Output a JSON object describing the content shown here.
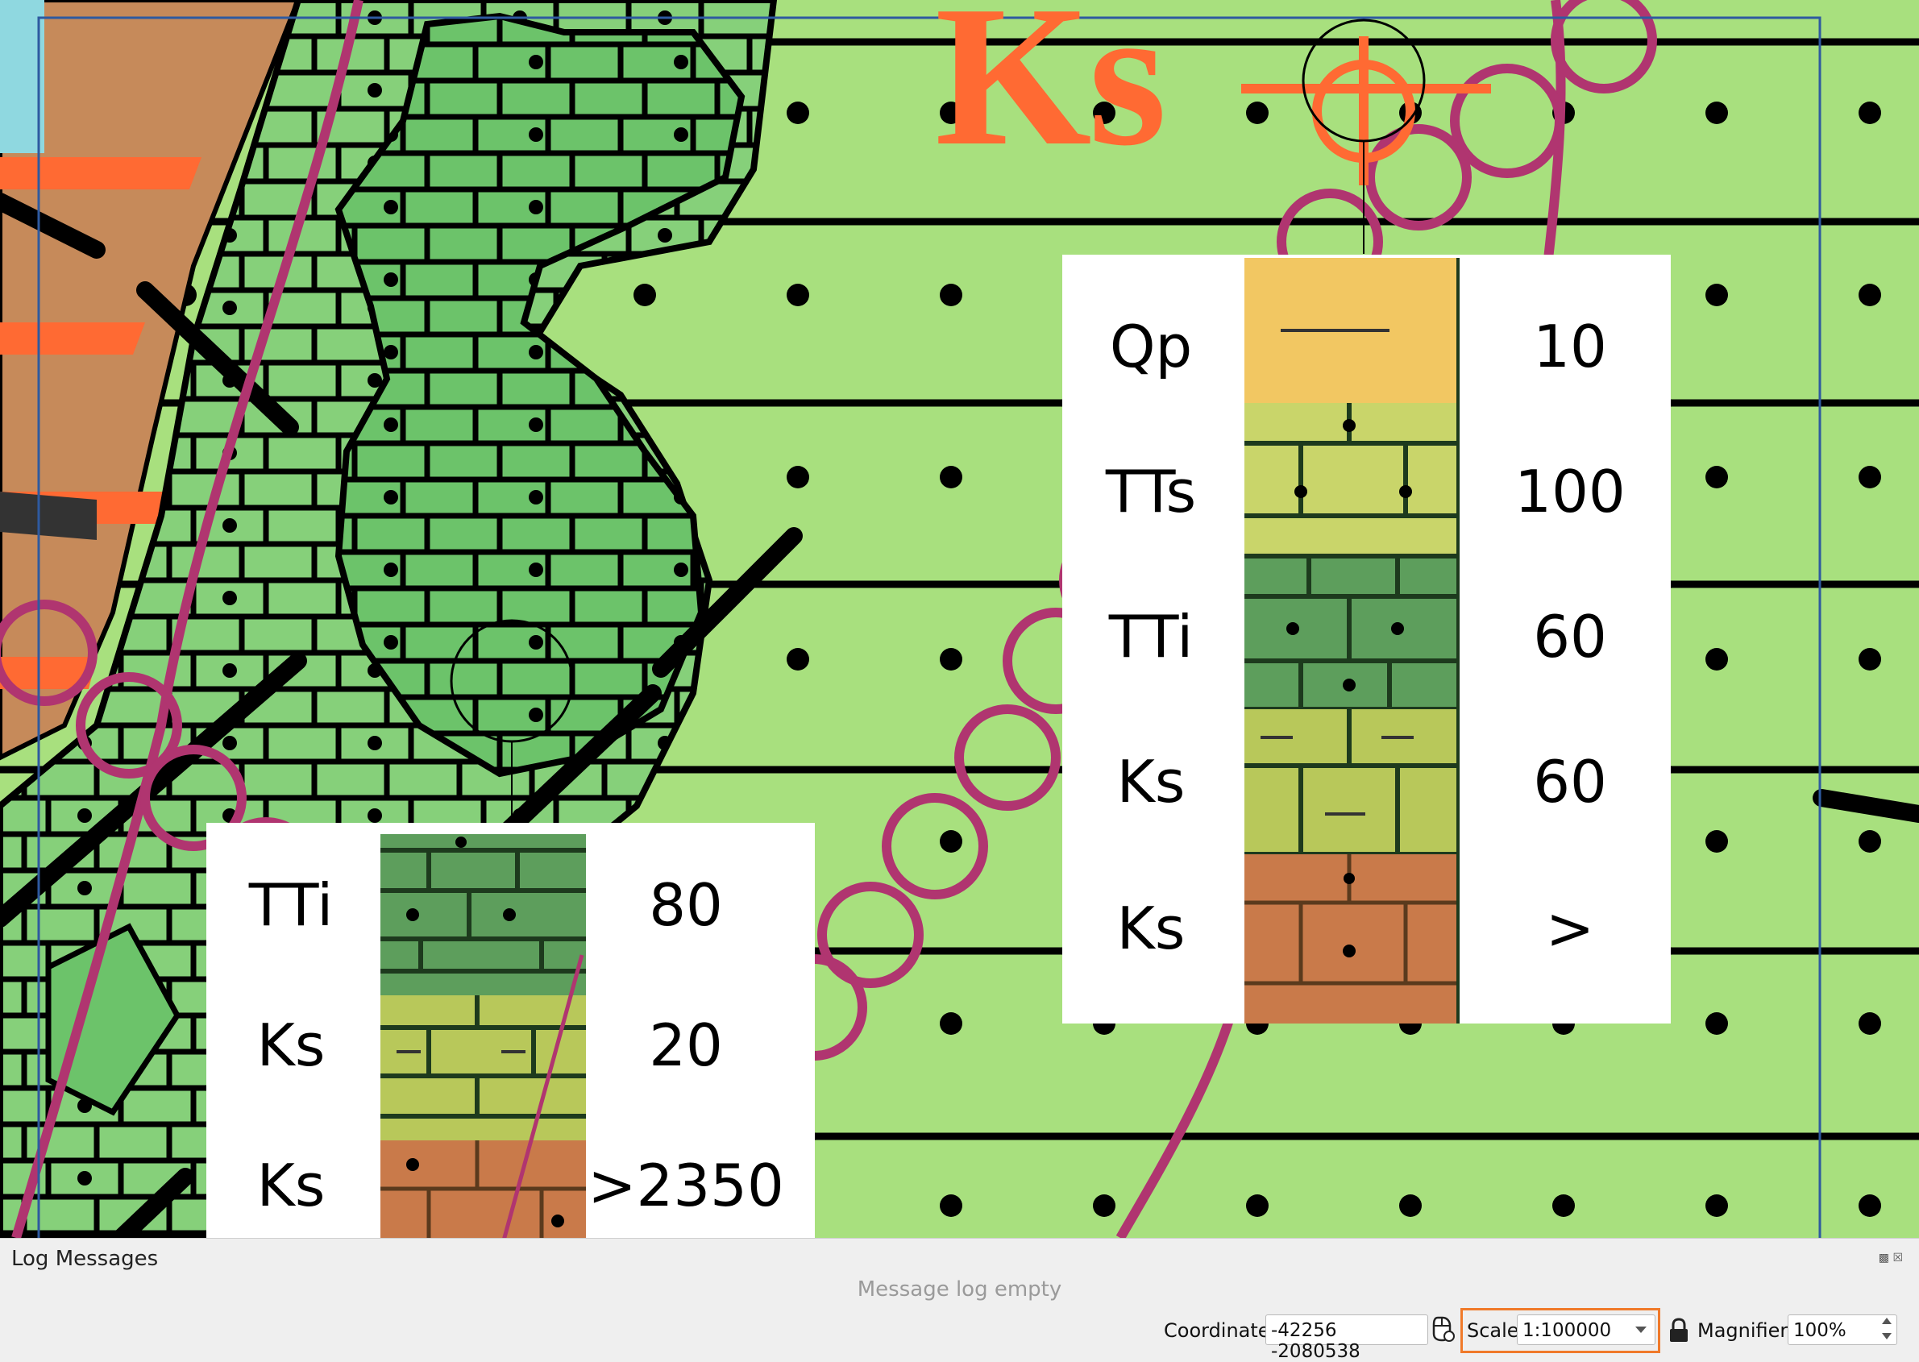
{
  "map": {
    "big_label": "Ks",
    "legend_right": [
      {
        "code": "Qp",
        "value": "10"
      },
      {
        "code": "TTs",
        "value": "100"
      },
      {
        "code": "TTi",
        "value": "60"
      },
      {
        "code": "Ks",
        "value": "60"
      },
      {
        "code": "Ks",
        "value": ">"
      }
    ],
    "legend_left": [
      {
        "code": "TTi",
        "value": "80"
      },
      {
        "code": "Ks",
        "value": "20"
      },
      {
        "code": "Ks",
        "value": ">2350"
      }
    ],
    "colors": {
      "background": "#a8e07e",
      "limestone": "#7ccd6e",
      "brown": "#c68a5a",
      "orange": "#ff6a33",
      "magenta": "#b03570"
    }
  },
  "log_panel": {
    "title": "Log Messages",
    "empty_text": "Message log empty"
  },
  "status_bar": {
    "coordinate_label": "Coordinate",
    "coordinate_value": "-42256 -2080538",
    "scale_label": "Scale",
    "scale_value": "1:100000",
    "magnifier_label": "Magnifier",
    "magnifier_value": "100%",
    "icons": [
      "mouse-coordinate-icon",
      "lock-icon"
    ]
  }
}
